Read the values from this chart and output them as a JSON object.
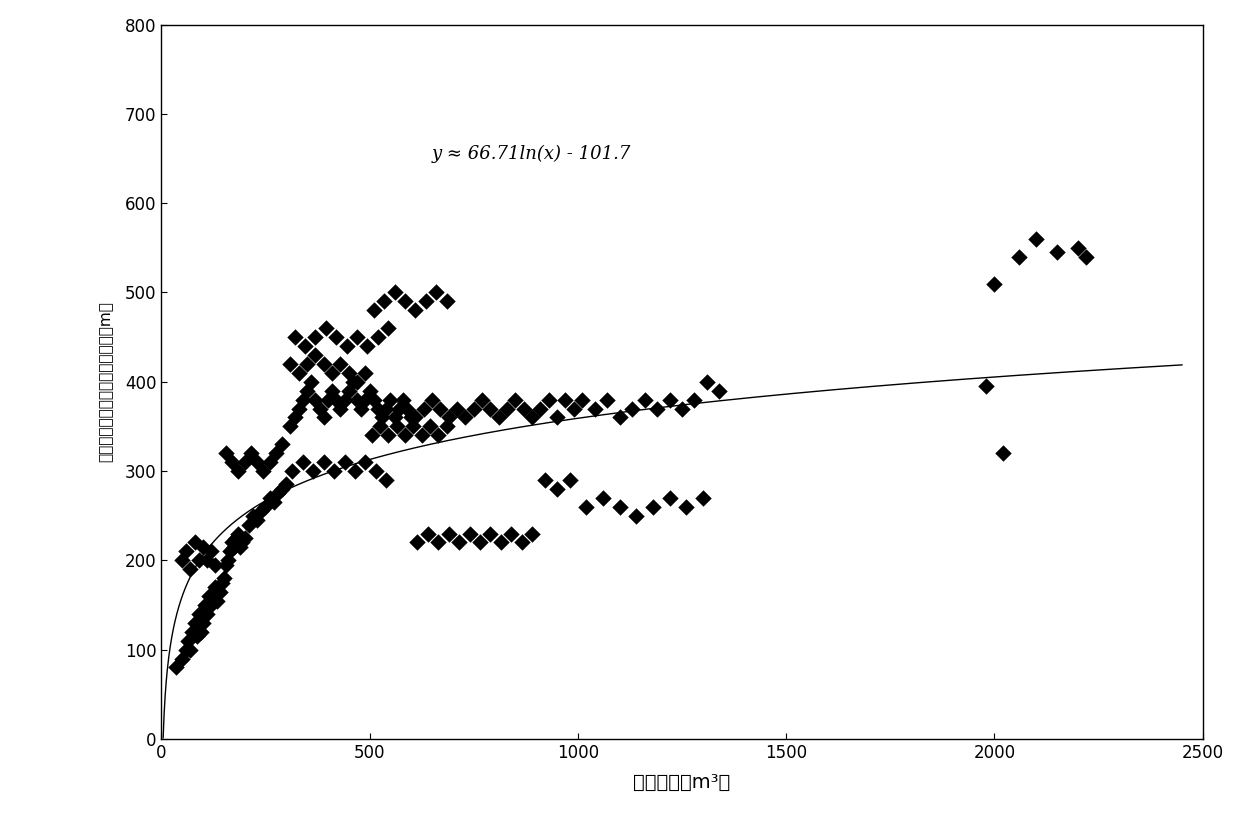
{
  "equation": "y ≈ 66.71ln(x) - 101.7",
  "log_a": 66.71,
  "log_b": -101.7,
  "xlim": [
    0,
    2500
  ],
  "ylim": [
    0,
    800
  ],
  "xticks": [
    0,
    500,
    1000,
    1500,
    2000,
    2500
  ],
  "yticks": [
    0,
    100,
    200,
    300,
    400,
    500,
    600,
    700,
    800
  ],
  "xlabel": "入地液量（m³）",
  "ylabel": "井下微地震监测的有效裂缝半长（m）",
  "marker_color": "#000000",
  "marker_size": 70,
  "line_color": "#000000",
  "background_color": "#ffffff",
  "equation_x": 650,
  "equation_y": 650,
  "equation_fontsize": 13
}
